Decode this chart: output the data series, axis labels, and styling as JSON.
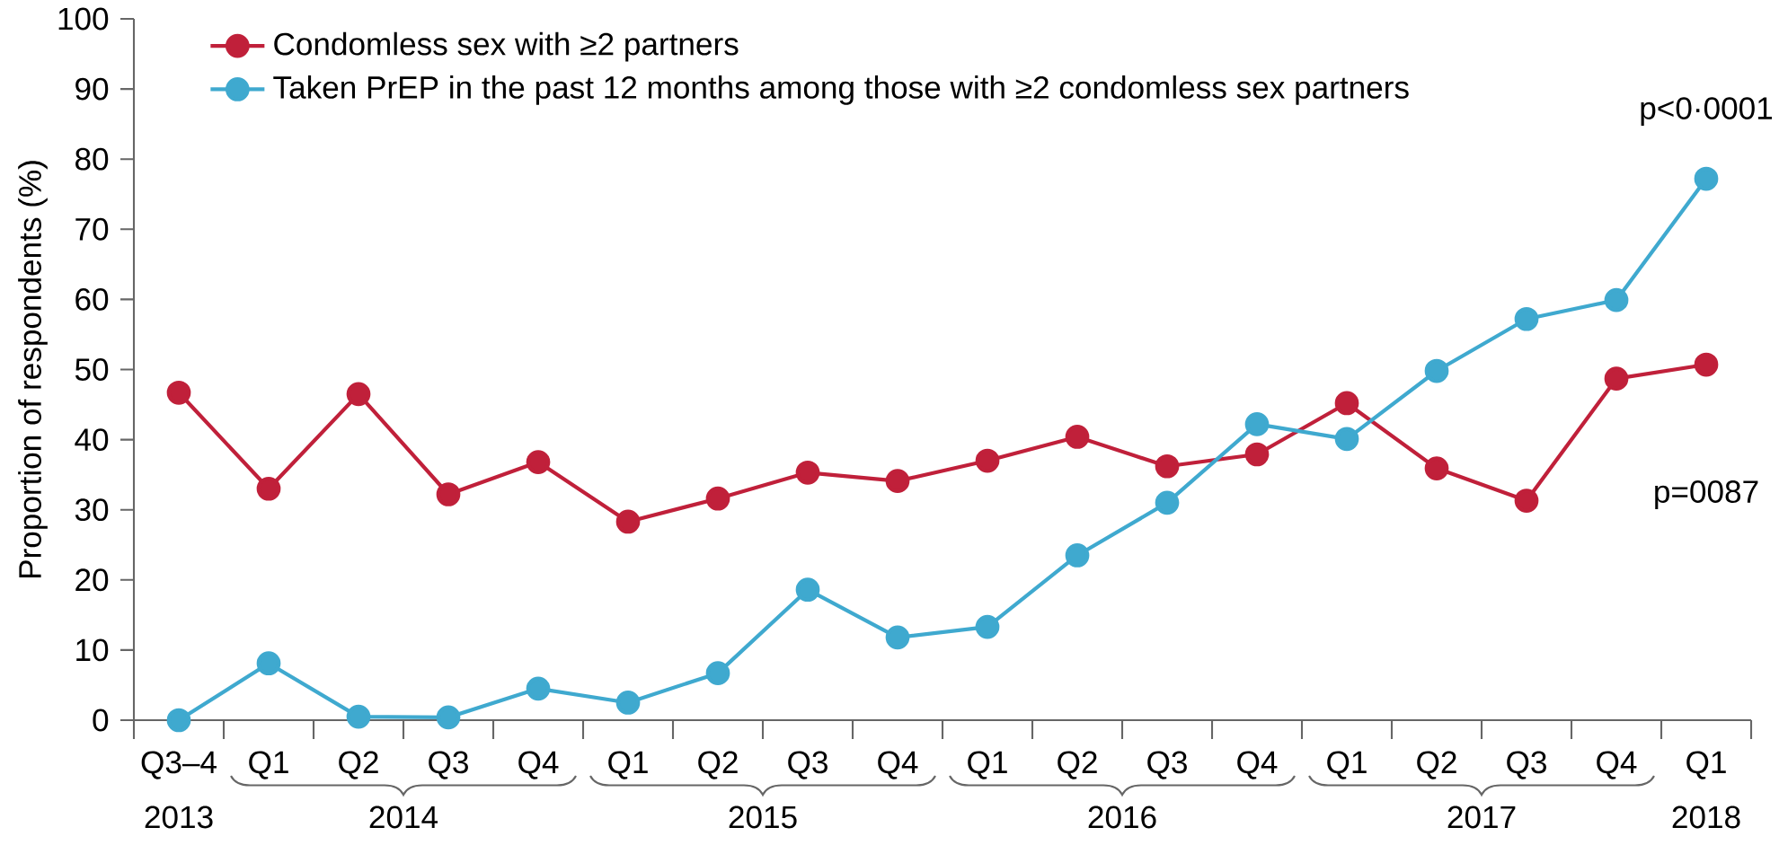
{
  "chart_data": {
    "type": "line",
    "ylabel": "Proportion of respondents (%)",
    "categories": [
      "Q3–4",
      "Q1",
      "Q2",
      "Q3",
      "Q4",
      "Q1",
      "Q2",
      "Q3",
      "Q4",
      "Q1",
      "Q2",
      "Q3",
      "Q4",
      "Q1",
      "Q2",
      "Q3",
      "Q4",
      "Q1"
    ],
    "series": [
      {
        "name": "Condomless sex with ≥2 partners",
        "color": "#c0203a",
        "values": [
          46.7,
          33.0,
          46.5,
          32.2,
          36.8,
          28.3,
          31.6,
          35.3,
          34.1,
          37.0,
          40.4,
          36.2,
          37.9,
          45.2,
          35.9,
          31.3,
          48.7,
          50.7
        ]
      },
      {
        "name": "Taken PrEP in the past 12 months among those with ≥2 condomless sex partners",
        "color": "#3fa9cf",
        "values": [
          0,
          8.1,
          0.5,
          0.4,
          4.5,
          2.5,
          6.7,
          18.6,
          11.8,
          13.3,
          23.5,
          31.0,
          42.2,
          40.1,
          49.8,
          57.2,
          59.9,
          77.2
        ]
      }
    ],
    "ylim": [
      0,
      100
    ],
    "yticks": [
      0,
      10,
      20,
      30,
      40,
      50,
      60,
      70,
      80,
      90,
      100
    ],
    "annotations": [
      "p=0087",
      "p<0·0001",
      "2013",
      "2014",
      "2015",
      "2016",
      "2017",
      "2018"
    ],
    "legend": "top left",
    "grid": false,
    "marker": "circle",
    "line_style": "solid"
  }
}
